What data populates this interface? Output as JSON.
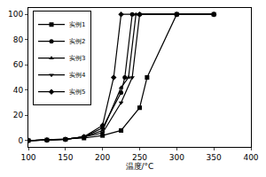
{
  "chart_data": {
    "type": "line",
    "x_label": "温度/°C",
    "xlim": [
      100,
      400
    ],
    "xticks": [
      100,
      150,
      200,
      250,
      300,
      350,
      400
    ],
    "ylim": [
      -5,
      105
    ],
    "yticks": [
      0,
      20,
      40,
      60,
      80,
      100
    ],
    "grid": false,
    "legend": "upper left",
    "series": [
      {
        "name": "实例1",
        "color": "#000000",
        "marker": "square",
        "line_style": "solid",
        "x": [
          100,
          125,
          150,
          175,
          200,
          225,
          250,
          260,
          300,
          350
        ],
        "values": [
          0,
          0.5,
          1,
          2,
          4,
          8,
          26,
          50,
          100,
          100
        ]
      },
      {
        "name": "实例2",
        "color": "#000000",
        "marker": "circle",
        "line_style": "solid",
        "x": [
          100,
          125,
          150,
          175,
          200,
          225,
          230,
          240,
          250,
          300,
          350
        ],
        "values": [
          0,
          0.5,
          1,
          3,
          10,
          38,
          50,
          100,
          100,
          100,
          100
        ]
      },
      {
        "name": "实例3",
        "color": "#000000",
        "marker": "triangle-up",
        "line_style": "solid",
        "x": [
          100,
          125,
          150,
          175,
          200,
          225,
          235,
          245,
          250,
          300,
          350
        ],
        "values": [
          0,
          0.5,
          1,
          3,
          8,
          42,
          50,
          100,
          100,
          100,
          100
        ]
      },
      {
        "name": "实例4",
        "color": "#000000",
        "marker": "triangle-down",
        "line_style": "solid",
        "x": [
          100,
          125,
          150,
          175,
          200,
          225,
          240,
          250,
          300,
          350
        ],
        "values": [
          0,
          0.5,
          1,
          3,
          6,
          30,
          50,
          100,
          100,
          100
        ]
      },
      {
        "name": "实例5",
        "color": "#000000",
        "marker": "diamond",
        "line_style": "solid",
        "x": [
          100,
          125,
          150,
          175,
          200,
          215,
          225,
          250,
          300,
          350
        ],
        "values": [
          0,
          0.5,
          1,
          3,
          12,
          50,
          100,
          100,
          100,
          100
        ]
      }
    ]
  }
}
